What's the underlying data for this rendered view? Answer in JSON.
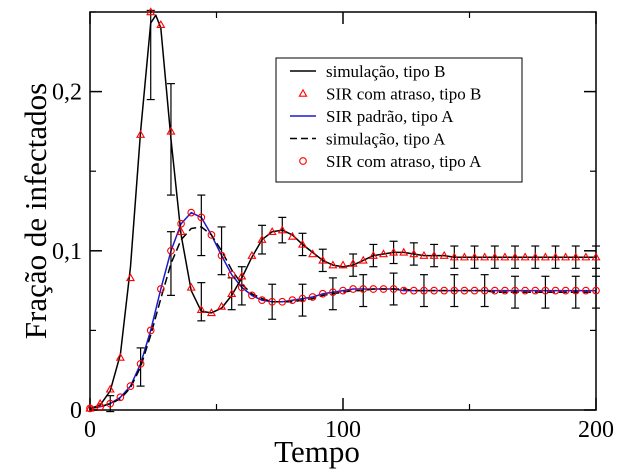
{
  "chart_data": {
    "type": "line",
    "title": "",
    "xlabel": "Tempo",
    "ylabel": "Fração de infectados",
    "xlim": [
      0,
      200
    ],
    "ylim": [
      0,
      0.25
    ],
    "grid": false,
    "legend_position": "top-right",
    "x_ticks": [
      {
        "value": 0,
        "label": "0"
      },
      {
        "value": 100,
        "label": "100"
      },
      {
        "value": 200,
        "label": "200"
      }
    ],
    "y_ticks": [
      {
        "value": 0,
        "label": "0"
      },
      {
        "value": 0.1,
        "label": "0,1"
      },
      {
        "value": 0.2,
        "label": "0,2"
      }
    ],
    "series": [
      {
        "name": "simulação, tipo B",
        "style": "solid",
        "color": "#000000",
        "x": [
          0,
          4,
          8,
          12,
          16,
          20,
          24,
          26,
          28,
          32,
          36,
          40,
          44,
          48,
          52,
          56,
          60,
          64,
          68,
          72,
          76,
          80,
          84,
          88,
          92,
          96,
          100,
          104,
          108,
          112,
          116,
          120,
          124,
          128,
          132,
          136,
          140,
          144,
          148,
          152,
          156,
          160,
          164,
          168,
          172,
          176,
          180,
          184,
          188,
          192,
          196,
          200
        ],
        "y": [
          0.001,
          0.003,
          0.012,
          0.035,
          0.09,
          0.175,
          0.243,
          0.248,
          0.24,
          0.17,
          0.11,
          0.075,
          0.062,
          0.061,
          0.064,
          0.072,
          0.083,
          0.096,
          0.107,
          0.112,
          0.113,
          0.11,
          0.104,
          0.099,
          0.094,
          0.091,
          0.09,
          0.091,
          0.094,
          0.097,
          0.098,
          0.099,
          0.099,
          0.098,
          0.097,
          0.097,
          0.097,
          0.096,
          0.096,
          0.096,
          0.096,
          0.096,
          0.096,
          0.096,
          0.096,
          0.096,
          0.096,
          0.096,
          0.096,
          0.096,
          0.096,
          0.096
        ],
        "error_x": [
          24,
          32,
          44,
          56,
          68,
          76,
          84,
          92,
          104,
          112,
          120,
          128,
          136,
          144,
          152,
          160,
          168,
          176,
          184,
          192,
          200
        ],
        "error_y": [
          0.223,
          0.17,
          0.068,
          0.073,
          0.107,
          0.113,
          0.104,
          0.094,
          0.091,
          0.097,
          0.099,
          0.098,
          0.097,
          0.096,
          0.096,
          0.096,
          0.096,
          0.096,
          0.096,
          0.096,
          0.096
        ],
        "error_delta": [
          0.028,
          0.035,
          0.012,
          0.01,
          0.009,
          0.008,
          0.007,
          0.007,
          0.007,
          0.007,
          0.007,
          0.007,
          0.007,
          0.007,
          0.007,
          0.007,
          0.007,
          0.007,
          0.007,
          0.007,
          0.007
        ]
      },
      {
        "name": "SIR com atraso, tipo B",
        "style": "marker-triangle",
        "color": "#ff0000",
        "x": [
          0,
          4,
          8,
          12,
          16,
          20,
          24,
          28,
          32,
          36,
          40,
          44,
          48,
          52,
          56,
          60,
          64,
          68,
          72,
          76,
          80,
          84,
          88,
          92,
          96,
          100,
          104,
          108,
          112,
          116,
          120,
          124,
          128,
          132,
          136,
          140,
          144,
          148,
          152,
          156,
          160,
          164,
          168,
          172,
          176,
          180,
          184,
          188,
          192,
          196,
          200
        ],
        "y": [
          0.001,
          0.004,
          0.013,
          0.033,
          0.083,
          0.173,
          0.25,
          0.242,
          0.175,
          0.112,
          0.077,
          0.063,
          0.061,
          0.065,
          0.073,
          0.084,
          0.097,
          0.107,
          0.112,
          0.113,
          0.109,
          0.104,
          0.098,
          0.094,
          0.091,
          0.091,
          0.092,
          0.094,
          0.097,
          0.098,
          0.099,
          0.099,
          0.098,
          0.097,
          0.097,
          0.097,
          0.096,
          0.096,
          0.096,
          0.096,
          0.096,
          0.096,
          0.096,
          0.096,
          0.096,
          0.096,
          0.096,
          0.096,
          0.096,
          0.096,
          0.096
        ]
      },
      {
        "name": "SIR padrão, tipo A",
        "style": "solid",
        "color": "#1a1ad0",
        "x": [
          0,
          4,
          8,
          12,
          16,
          20,
          24,
          28,
          32,
          36,
          40,
          44,
          48,
          52,
          56,
          60,
          64,
          68,
          72,
          76,
          80,
          84,
          88,
          92,
          96,
          100,
          104,
          108,
          112,
          116,
          120,
          124,
          128,
          132,
          136,
          140,
          144,
          148,
          152,
          156,
          160,
          164,
          168,
          172,
          176,
          180,
          184,
          188,
          192,
          196,
          200
        ],
        "y": [
          0.001,
          0.002,
          0.004,
          0.008,
          0.015,
          0.029,
          0.05,
          0.076,
          0.1,
          0.117,
          0.124,
          0.121,
          0.11,
          0.097,
          0.085,
          0.077,
          0.072,
          0.069,
          0.068,
          0.068,
          0.069,
          0.07,
          0.071,
          0.073,
          0.074,
          0.075,
          0.076,
          0.076,
          0.076,
          0.076,
          0.076,
          0.075,
          0.075,
          0.075,
          0.075,
          0.075,
          0.075,
          0.075,
          0.075,
          0.075,
          0.075,
          0.075,
          0.075,
          0.075,
          0.075,
          0.075,
          0.075,
          0.075,
          0.075,
          0.075,
          0.075
        ]
      },
      {
        "name": "simulação, tipo A",
        "style": "dashed",
        "color": "#000000",
        "x": [
          0,
          4,
          8,
          12,
          16,
          20,
          24,
          28,
          32,
          36,
          40,
          44,
          48,
          52,
          56,
          60,
          64,
          68,
          72,
          76,
          80,
          84,
          88,
          92,
          96,
          100,
          104,
          108,
          112,
          116,
          120,
          124,
          128,
          132,
          136,
          140,
          144,
          148,
          152,
          156,
          160,
          164,
          168,
          172,
          176,
          180,
          184,
          188,
          192,
          196,
          200
        ],
        "y": [
          0.001,
          0.002,
          0.004,
          0.007,
          0.014,
          0.027,
          0.047,
          0.07,
          0.092,
          0.107,
          0.114,
          0.115,
          0.11,
          0.1,
          0.088,
          0.079,
          0.073,
          0.07,
          0.068,
          0.068,
          0.068,
          0.069,
          0.07,
          0.072,
          0.073,
          0.074,
          0.075,
          0.075,
          0.076,
          0.076,
          0.076,
          0.076,
          0.075,
          0.075,
          0.075,
          0.075,
          0.075,
          0.075,
          0.075,
          0.075,
          0.074,
          0.074,
          0.074,
          0.074,
          0.074,
          0.074,
          0.074,
          0.074,
          0.074,
          0.074,
          0.074
        ],
        "error_x": [
          8,
          20,
          32,
          44,
          52,
          60,
          72,
          84,
          96,
          108,
          120,
          132,
          144,
          156,
          168,
          180,
          192,
          200
        ],
        "error_y": [
          0.004,
          0.027,
          0.092,
          0.116,
          0.1,
          0.078,
          0.068,
          0.069,
          0.073,
          0.075,
          0.076,
          0.075,
          0.075,
          0.075,
          0.074,
          0.074,
          0.074,
          0.074
        ],
        "error_delta": [
          0.005,
          0.012,
          0.02,
          0.019,
          0.015,
          0.012,
          0.011,
          0.01,
          0.01,
          0.01,
          0.01,
          0.01,
          0.01,
          0.01,
          0.01,
          0.01,
          0.01,
          0.01
        ]
      },
      {
        "name": "SIR com atraso, tipo A",
        "style": "marker-circle",
        "color": "#ff0000",
        "x": [
          0,
          4,
          8,
          12,
          16,
          20,
          24,
          28,
          32,
          36,
          40,
          44,
          48,
          52,
          56,
          60,
          64,
          68,
          72,
          76,
          80,
          84,
          88,
          92,
          96,
          100,
          104,
          108,
          112,
          116,
          120,
          124,
          128,
          132,
          136,
          140,
          144,
          148,
          152,
          156,
          160,
          164,
          168,
          172,
          176,
          180,
          184,
          188,
          192,
          196,
          200
        ],
        "y": [
          0.001,
          0.002,
          0.004,
          0.008,
          0.015,
          0.029,
          0.05,
          0.076,
          0.1,
          0.117,
          0.124,
          0.121,
          0.11,
          0.097,
          0.085,
          0.077,
          0.072,
          0.069,
          0.068,
          0.068,
          0.069,
          0.07,
          0.071,
          0.073,
          0.074,
          0.075,
          0.076,
          0.076,
          0.076,
          0.076,
          0.076,
          0.075,
          0.075,
          0.075,
          0.075,
          0.075,
          0.075,
          0.075,
          0.075,
          0.075,
          0.075,
          0.075,
          0.075,
          0.075,
          0.075,
          0.075,
          0.075,
          0.075,
          0.075,
          0.075,
          0.075
        ]
      }
    ]
  }
}
